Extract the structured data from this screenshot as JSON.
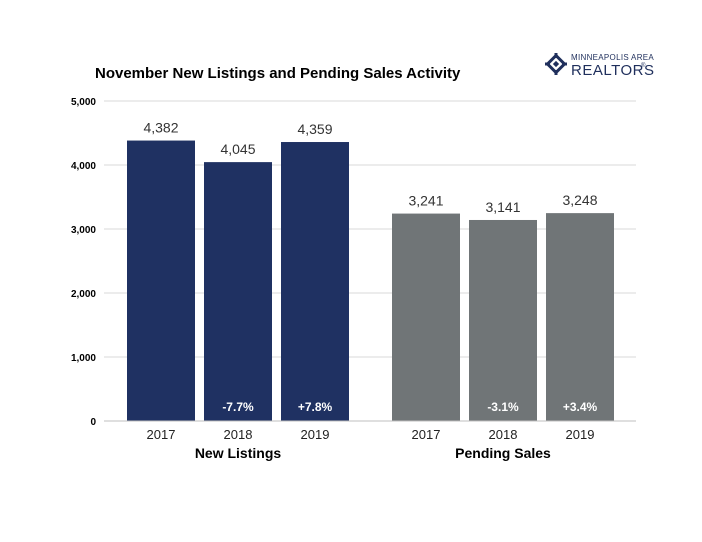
{
  "logo": {
    "line1": "MINNEAPOLIS AREA",
    "line2": "REALTORS",
    "reg_mark": "®",
    "color": "#1f2f5c"
  },
  "chart_data": {
    "type": "bar",
    "title": "November New Listings and Pending Sales Activity",
    "ylim": [
      0,
      5000
    ],
    "yticks": [
      0,
      1000,
      2000,
      3000,
      4000,
      5000
    ],
    "ytick_labels": [
      "0",
      "1,000",
      "2,000",
      "3,000",
      "4,000",
      "5,000"
    ],
    "grid": true,
    "groups": [
      {
        "name": "New Listings",
        "color": "#1f3162",
        "categories": [
          "2017",
          "2018",
          "2019"
        ],
        "values": [
          4382,
          4045,
          4359
        ],
        "value_labels": [
          "4,382",
          "4,045",
          "4,359"
        ],
        "changes": [
          "",
          "-7.7%",
          "+7.8%"
        ]
      },
      {
        "name": "Pending Sales",
        "color": "#707577",
        "categories": [
          "2017",
          "2018",
          "2019"
        ],
        "values": [
          3241,
          3141,
          3248
        ],
        "value_labels": [
          "3,241",
          "3,141",
          "3,248"
        ],
        "changes": [
          "",
          "-3.1%",
          "+3.4%"
        ]
      }
    ]
  }
}
